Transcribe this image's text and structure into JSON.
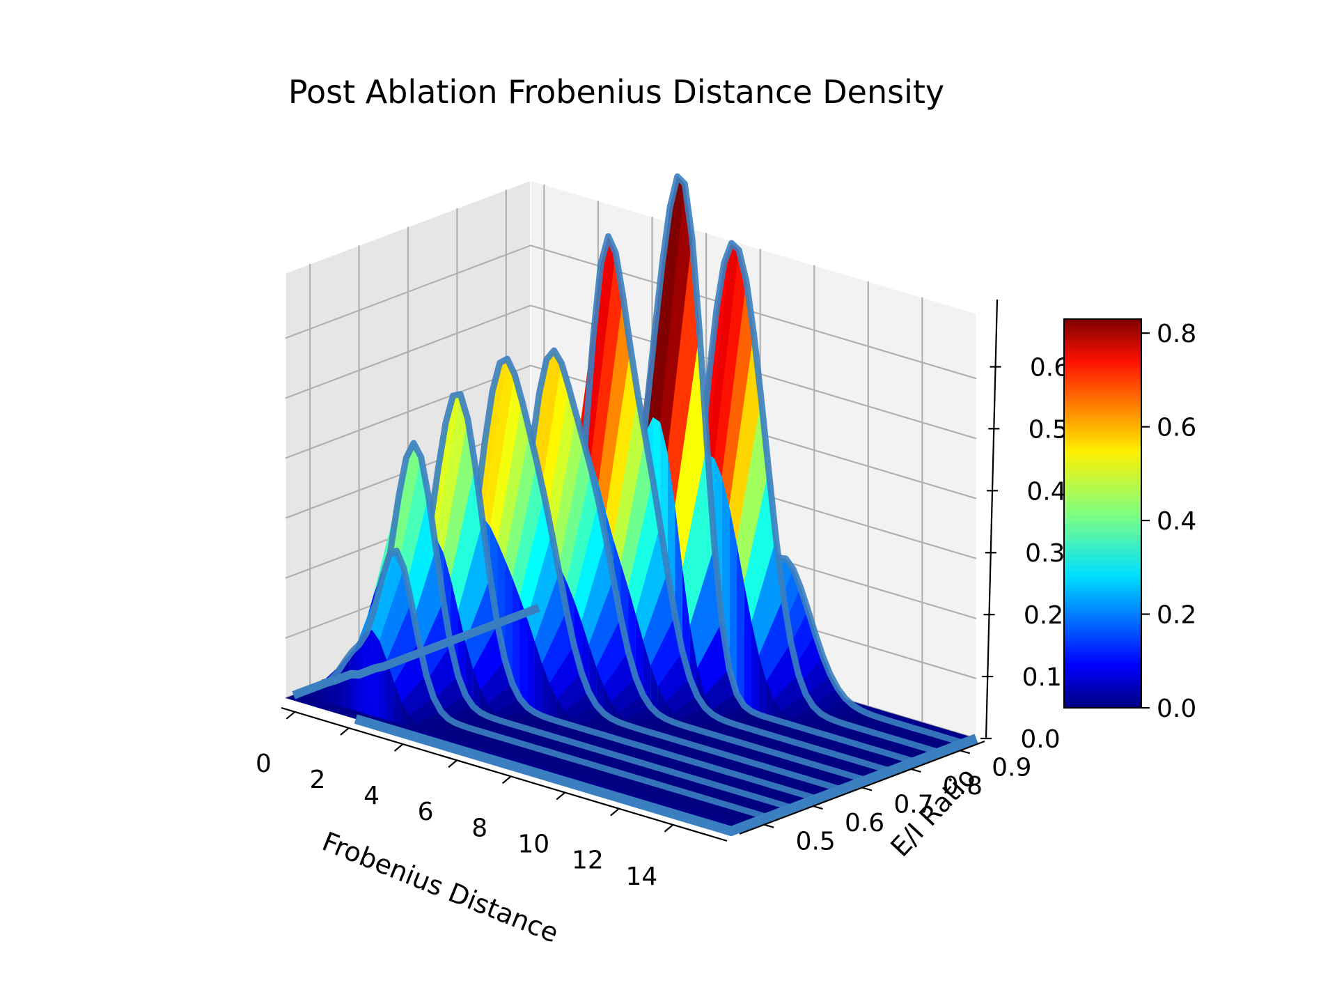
{
  "chart_data": {
    "type": "surface3d",
    "title": "Post Ablation Frobenius Distance Density",
    "xlabel": "Frobenius Distance",
    "ylabel": "E/I Ratio",
    "zlabel": "",
    "x_ticks": [
      "0",
      "2",
      "4",
      "6",
      "8",
      "10",
      "12",
      "14"
    ],
    "y_ticks": [
      "0.5",
      "0.6",
      "0.7",
      "0.8",
      "0.9"
    ],
    "z_ticks": [
      "0.0",
      "0.1",
      "0.2",
      "0.3",
      "0.4",
      "0.5",
      "0.6"
    ],
    "xlim": [
      -0.5,
      16
    ],
    "ylim": [
      0.45,
      0.95
    ],
    "zlim": [
      0,
      0.65
    ],
    "colormap": "jet",
    "colorbar": {
      "ticks": [
        "0.0",
        "0.2",
        "0.4",
        "0.6",
        "0.8"
      ],
      "range": [
        0,
        0.83
      ]
    },
    "edge_color": "#3a7fc0",
    "grid": true,
    "series": [
      {
        "y": 0.5,
        "peaks": [
          [
            0.6,
            0.05,
            0.45
          ],
          [
            2.2,
            0.26,
            0.7
          ]
        ]
      },
      {
        "y": 0.55,
        "peaks": [
          [
            2.0,
            0.42,
            0.8
          ]
        ]
      },
      {
        "y": 0.6,
        "peaks": [
          [
            2.7,
            0.5,
            0.9
          ]
        ]
      },
      {
        "y": 0.65,
        "peaks": [
          [
            3.3,
            0.46,
            0.8
          ],
          [
            4.8,
            0.3,
            0.9
          ]
        ]
      },
      {
        "y": 0.7,
        "peaks": [
          [
            4.2,
            0.48,
            0.8
          ],
          [
            5.8,
            0.32,
            0.9
          ]
        ]
      },
      {
        "y": 0.75,
        "peaks": [
          [
            5.4,
            0.62,
            0.7
          ],
          [
            6.8,
            0.38,
            0.9
          ]
        ]
      },
      {
        "y": 0.8,
        "peaks": [
          [
            6.5,
            0.46,
            0.8
          ],
          [
            7.6,
            0.64,
            0.7
          ]
        ]
      },
      {
        "y": 0.85,
        "peaks": [
          [
            7.8,
            0.4,
            0.8
          ],
          [
            8.9,
            0.52,
            0.9
          ]
        ]
      },
      {
        "y": 0.9,
        "peaks": [
          [
            9.3,
            0.22,
            1.0
          ]
        ]
      }
    ]
  }
}
